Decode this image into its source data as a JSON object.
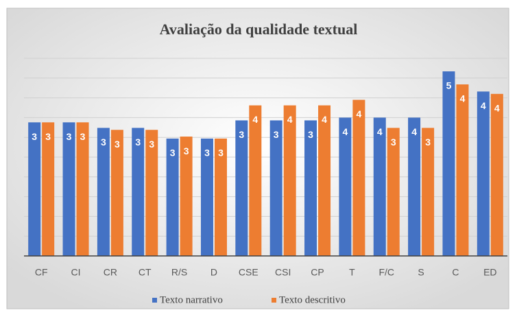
{
  "chart_data": {
    "type": "bar",
    "title": "Avaliação da qualidade textual",
    "categories": [
      "CF",
      "CI",
      "CR",
      "CT",
      "R/S",
      "D",
      "CSE",
      "CSI",
      "CP",
      "T",
      "F/C",
      "S",
      "C",
      "ED"
    ],
    "series": [
      {
        "name": "Texto narrativo",
        "color": "#4472c4",
        "values": [
          3.38,
          3.38,
          3.24,
          3.24,
          2.97,
          2.97,
          3.43,
          3.43,
          3.43,
          3.5,
          3.5,
          3.5,
          4.67,
          4.16
        ],
        "value_labels": [
          "3",
          "3",
          "3",
          "3",
          "3",
          "3",
          "3",
          "3",
          "3",
          "4",
          "4",
          "4",
          "5",
          "4"
        ]
      },
      {
        "name": "Texto descritivo",
        "color": "#ed7d31",
        "values": [
          3.38,
          3.38,
          3.19,
          3.19,
          3.02,
          2.97,
          3.81,
          3.81,
          3.81,
          3.95,
          3.24,
          3.24,
          4.34,
          4.1
        ],
        "value_labels": [
          "3",
          "3",
          "3",
          "3",
          "3",
          "3",
          "4",
          "4",
          "4",
          "4",
          "3",
          "3",
          "4",
          "4"
        ]
      }
    ],
    "ylim": [
      0,
      5
    ],
    "yticks": [
      0,
      0.5,
      1,
      1.5,
      2,
      2.5,
      3,
      3.5,
      4,
      4.5,
      5
    ],
    "grid": true,
    "legend": "bottom"
  }
}
